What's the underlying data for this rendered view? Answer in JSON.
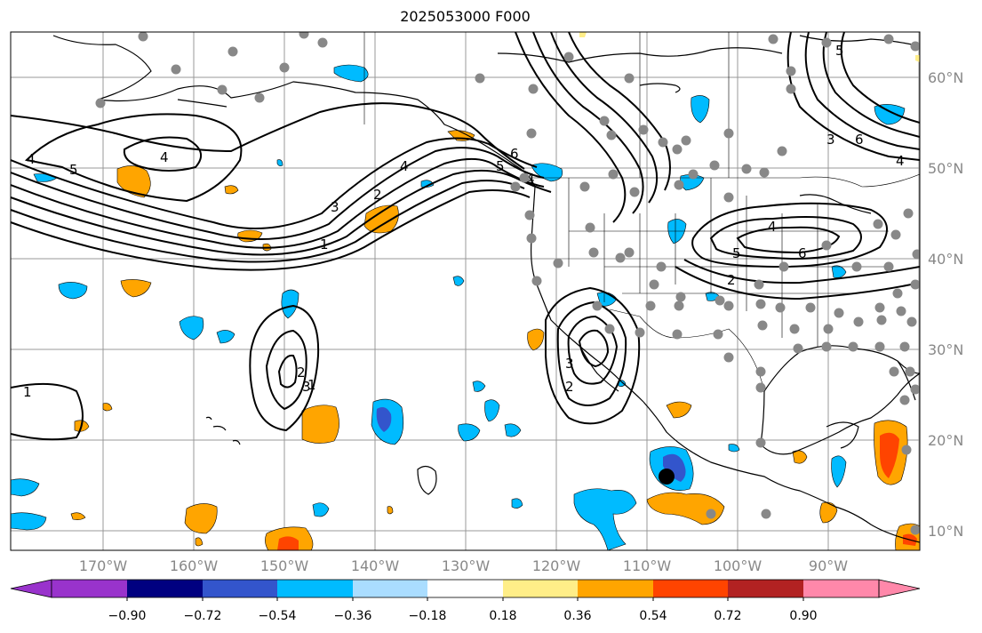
{
  "title": "2025053000 F000",
  "map": {
    "lon_labels": [
      "170°W",
      "160°W",
      "150°W",
      "140°W",
      "130°W",
      "120°W",
      "110°W",
      "100°W",
      "90°W"
    ],
    "lat_labels": [
      "60°N",
      "50°N",
      "40°N",
      "30°N",
      "20°N",
      "10°N"
    ],
    "grid_color": "#999999",
    "station_marker_color": "#888888",
    "contour_labels": [
      "4",
      "5",
      "4",
      "4",
      "3",
      "2",
      "1",
      "6",
      "5",
      "4",
      "3",
      "6",
      "4",
      "5",
      "6",
      "5",
      "4",
      "2",
      "3",
      "2",
      "1",
      "3",
      "2",
      "1"
    ]
  },
  "colorbar": {
    "ticks": [
      "−0.90",
      "−0.72",
      "−0.54",
      "−0.36",
      "−0.18",
      "0.18",
      "0.36",
      "0.54",
      "0.72",
      "0.90"
    ],
    "colors": [
      "#9933cc",
      "#000080",
      "#3355cc",
      "#00bbff",
      "#aaddff",
      "#ffffff",
      "#ffee88",
      "#ffa500",
      "#ff4400",
      "#b22222",
      "#ff88aa"
    ]
  }
}
